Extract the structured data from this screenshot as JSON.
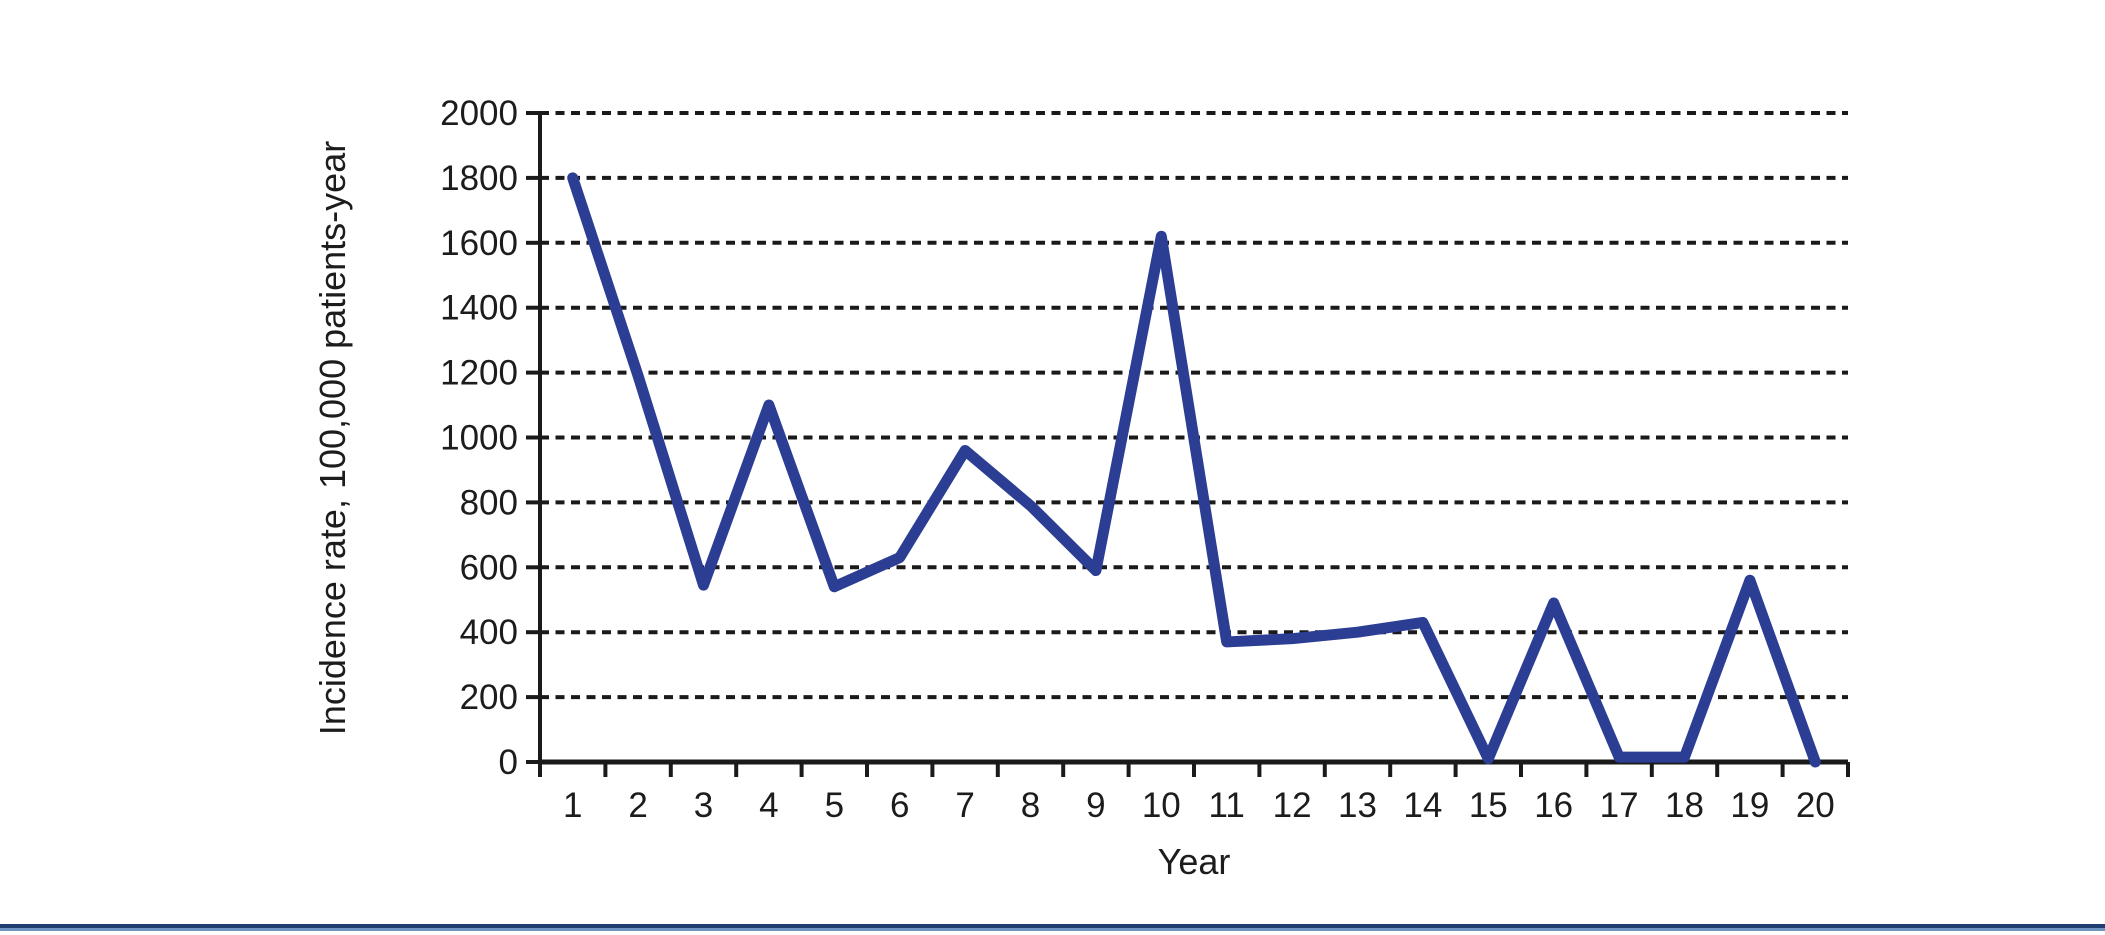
{
  "chart_data": {
    "type": "line",
    "title": "",
    "xlabel": "Year",
    "ylabel": "Incidence rate, 100,000 patients-year",
    "categories": [
      1,
      2,
      3,
      4,
      5,
      6,
      7,
      8,
      9,
      10,
      11,
      12,
      13,
      14,
      15,
      16,
      17,
      18,
      19,
      20
    ],
    "series": [
      {
        "name": "Incidence rate",
        "values": [
          1800,
          1190,
          545,
          1100,
          540,
          630,
          960,
          790,
          590,
          1620,
          370,
          380,
          400,
          430,
          10,
          490,
          15,
          15,
          560,
          0
        ]
      }
    ],
    "ylim": [
      0,
      2000
    ],
    "ytick_step": 200,
    "ytick_labels": [
      "0",
      "200",
      "400",
      "600",
      "800",
      "1000",
      "1200",
      "1400",
      "1600",
      "1800",
      "2000"
    ],
    "grid": "horizontal-dashed",
    "legend": "none",
    "line_color": "#2b3e94",
    "axis_color": "#1a1a1a"
  },
  "page": {
    "background": "#ffffff",
    "footer_rule": {
      "top_color": "#1f3d6e",
      "bottom_color": "#6f94bf"
    }
  }
}
